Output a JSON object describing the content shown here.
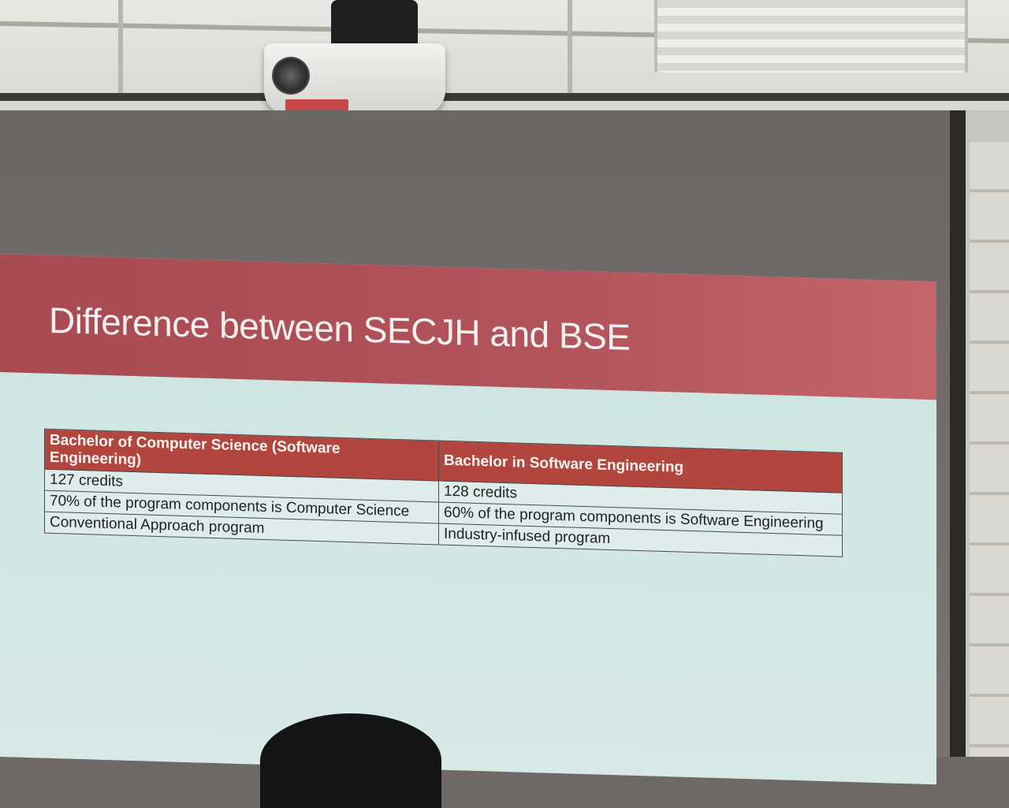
{
  "slide": {
    "title": "Difference between SECJH and BSE",
    "table": {
      "headers": [
        "Bachelor of Computer Science (Software Engineering)",
        "Bachelor in Software Engineering"
      ],
      "rows": [
        [
          "127 credits",
          "128 credits"
        ],
        [
          "70% of the program components is Computer Science",
          "60% of the program components is Software Engineering"
        ],
        [
          "Conventional Approach program",
          "Industry-infused program"
        ]
      ]
    },
    "colors": {
      "title_band": "#b3545c",
      "header_fill": "#b3453f",
      "body_fill": "#cfe6e3"
    }
  }
}
